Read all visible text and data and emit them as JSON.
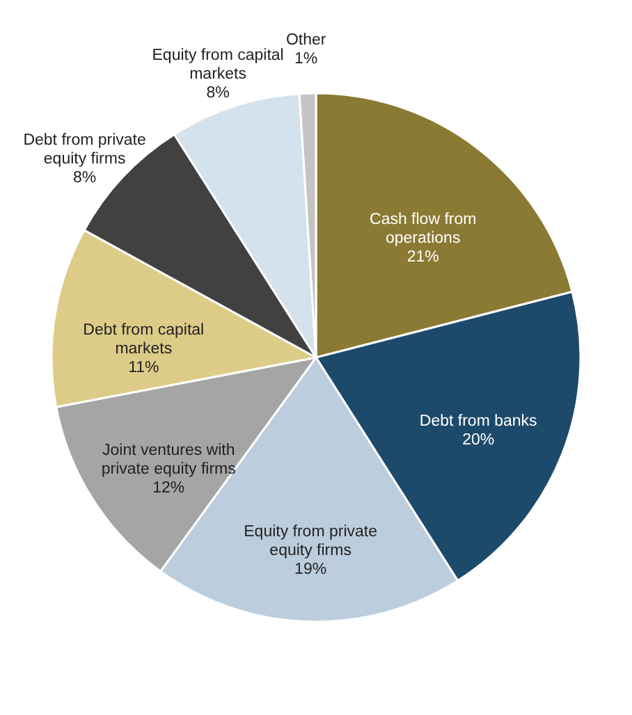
{
  "chart_data": {
    "type": "pie",
    "categories": [
      "Cash flow from operations",
      "Debt from banks",
      "Equity from private equity firms",
      "Joint ventures with private equity firms",
      "Debt from capital markets",
      "Debt from private equity firms",
      "Equity from capital markets",
      "Other"
    ],
    "values": [
      21,
      20,
      19,
      12,
      11,
      8,
      8,
      1
    ],
    "colors": [
      "#8b7a33",
      "#1d4a6b",
      "#bccddd",
      "#a5a5a5",
      "#ddcc88",
      "#414141",
      "#d3e2ec",
      "#c4c4c4"
    ],
    "value_labels": [
      "21%",
      "20%",
      "19%",
      "12%",
      "11%",
      "8%",
      "8%",
      "1%"
    ],
    "legend": false
  }
}
